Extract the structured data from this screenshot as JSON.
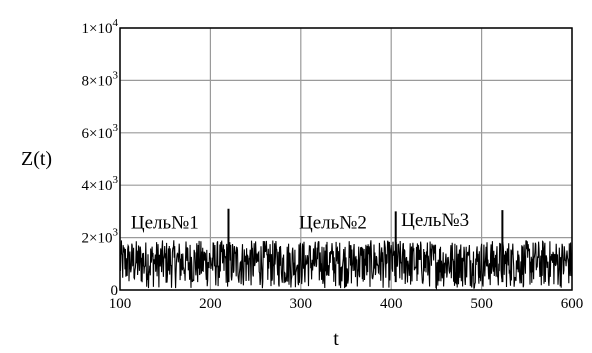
{
  "chart_data": {
    "type": "line",
    "xlabel": "t",
    "ylabel": "Z(t)",
    "xlim": [
      100,
      600
    ],
    "ylim": [
      0,
      10000
    ],
    "x_ticks": [
      100,
      200,
      300,
      400,
      500,
      600
    ],
    "y_ticks": [
      {
        "value": 0,
        "mantissa": "0",
        "exp": ""
      },
      {
        "value": 2000,
        "mantissa": "2×10",
        "exp": "3"
      },
      {
        "value": 4000,
        "mantissa": "4×10",
        "exp": "3"
      },
      {
        "value": 6000,
        "mantissa": "6×10",
        "exp": "3"
      },
      {
        "value": 8000,
        "mantissa": "8×10",
        "exp": "3"
      },
      {
        "value": 10000,
        "mantissa": "1×10",
        "exp": "4"
      }
    ],
    "grid": true,
    "line_color": "#000000",
    "noise": {
      "t_start": 100,
      "t_end": 600,
      "step": 0.5,
      "min": 50,
      "max": 1900
    },
    "peaks": [
      {
        "t": 220,
        "value": 3100
      },
      {
        "t": 405,
        "value": 3000
      },
      {
        "t": 523,
        "value": 3050
      }
    ],
    "annotations": [
      {
        "text": "Цель№1",
        "t": 112,
        "value": 2350
      },
      {
        "text": "Цель№2",
        "t": 298,
        "value": 2350
      },
      {
        "text": "Цель№3",
        "t": 411,
        "value": 2450
      }
    ]
  }
}
